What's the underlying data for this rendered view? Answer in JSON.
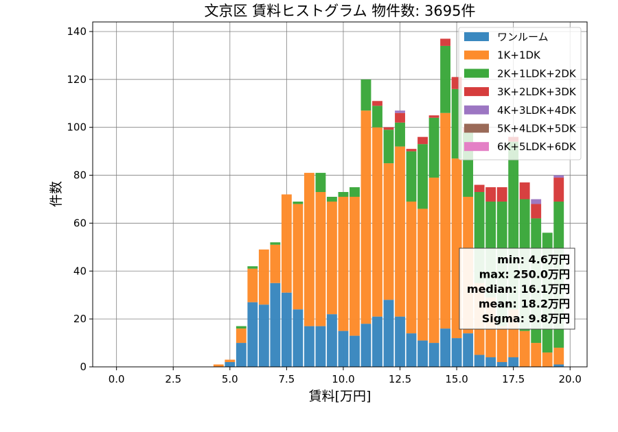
{
  "chart_data": {
    "type": "bar",
    "stacked": true,
    "title": "文京区 賃料ヒストグラム 物件数: 3695件",
    "xlabel": "賃料[万円]",
    "ylabel": "件数",
    "xlim": [
      -1.05,
      20.75
    ],
    "ylim": [
      0,
      144
    ],
    "bin_width": 0.5,
    "grid": true,
    "legend_position": "top-right",
    "xticks": [
      0.0,
      2.5,
      5.0,
      7.5,
      10.0,
      12.5,
      15.0,
      17.5,
      20.0
    ],
    "xtick_labels": [
      "0.0",
      "2.5",
      "5.0",
      "7.5",
      "10.0",
      "12.5",
      "15.0",
      "17.5",
      "20.0"
    ],
    "yticks": [
      0,
      20,
      40,
      60,
      80,
      100,
      120,
      140
    ],
    "ytick_labels": [
      "0",
      "20",
      "40",
      "60",
      "80",
      "100",
      "120",
      "140"
    ],
    "x": [
      4.5,
      5.0,
      5.5,
      6.0,
      6.5,
      7.0,
      7.5,
      8.0,
      8.5,
      9.0,
      9.5,
      10.0,
      10.5,
      11.0,
      11.5,
      12.0,
      12.5,
      13.0,
      13.5,
      14.0,
      14.5,
      15.0,
      15.5,
      16.0,
      16.5,
      17.0,
      17.5,
      18.0,
      18.5,
      19.0,
      19.5
    ],
    "series": [
      {
        "name": "ワンルーム",
        "color": "#3a88bf",
        "values": [
          0,
          2,
          10,
          27,
          26,
          35,
          31,
          24,
          17,
          17,
          22,
          15,
          13,
          18,
          21,
          28,
          21,
          14,
          11,
          10,
          16,
          12,
          14,
          5,
          4,
          2,
          4,
          0,
          0,
          0,
          1
        ]
      },
      {
        "name": "1K+1DK",
        "color": "#fd8c2c",
        "values": [
          1,
          1,
          6,
          14,
          23,
          16,
          41,
          44,
          64,
          56,
          47,
          56,
          58,
          89,
          79,
          57,
          71,
          55,
          55,
          69,
          90,
          75,
          57,
          30,
          25,
          15,
          20,
          15,
          10,
          6,
          7
        ]
      },
      {
        "name": "2K+1LDK+2DK",
        "color": "#3ca83c",
        "values": [
          0,
          0,
          1,
          1,
          0,
          1,
          0,
          1,
          0,
          8,
          2,
          2,
          4,
          13,
          9,
          14,
          10,
          21,
          27,
          25,
          28,
          29,
          27,
          38,
          40,
          52,
          70,
          55,
          52,
          50,
          61
        ]
      },
      {
        "name": "3K+2LDK+3DK",
        "color": "#d63c3c",
        "values": [
          0,
          0,
          0,
          0,
          0,
          0,
          0,
          0,
          0,
          0,
          0,
          0,
          0,
          0,
          2,
          1,
          4,
          1,
          3,
          1,
          3,
          5,
          2,
          3,
          6,
          6,
          2,
          7,
          6,
          0,
          10
        ]
      },
      {
        "name": "4K+3LDK+4DK",
        "color": "#9c76c2",
        "values": [
          0,
          0,
          0,
          0,
          0,
          0,
          0,
          0,
          0,
          0,
          0,
          0,
          0,
          0,
          0,
          0,
          1,
          0,
          0,
          0,
          0,
          0,
          0,
          0,
          0,
          0,
          0,
          0,
          2,
          0,
          1
        ]
      },
      {
        "name": "5K+4LDK+5DK",
        "color": "#9a6a58",
        "values": [
          0,
          0,
          0,
          0,
          0,
          0,
          0,
          0,
          0,
          0,
          0,
          0,
          0,
          0,
          0,
          0,
          0,
          0,
          0,
          0,
          0,
          0,
          0,
          0,
          0,
          0,
          0,
          0,
          0,
          0,
          0
        ]
      },
      {
        "name": "6K+5LDK+6DK",
        "color": "#e480c6",
        "values": [
          0,
          0,
          0,
          0,
          0,
          0,
          0,
          0,
          0,
          0,
          0,
          0,
          0,
          0,
          0,
          0,
          0,
          0,
          0,
          0,
          0,
          0,
          0,
          0,
          0,
          0,
          0,
          0,
          0,
          0,
          0
        ]
      }
    ],
    "stats_box": [
      "min: 4.6万円",
      "max: 250.0万円",
      "median: 16.1万円",
      "mean: 18.2万円",
      "Sigma: 9.8万円"
    ]
  }
}
